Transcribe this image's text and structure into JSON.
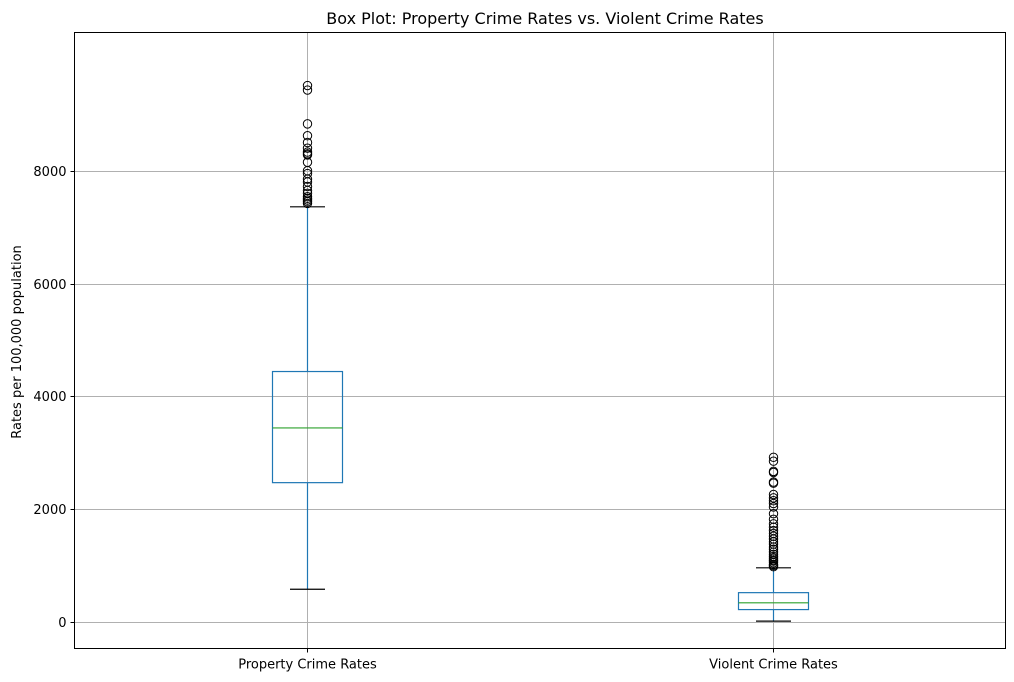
{
  "chart_data": {
    "type": "box",
    "title": "Box Plot: Property Crime Rates vs. Violent Crime Rates",
    "xlabel": "",
    "ylabel": "Rates per 100,000 population",
    "ylim": [
      -470,
      10450
    ],
    "yticks": [
      0,
      2000,
      4000,
      6000,
      8000
    ],
    "grid": true,
    "colors": {
      "box": "#1f77b4",
      "median": "#2ca02c",
      "cap": "#000000",
      "grid": "#b0b0b0"
    },
    "series": [
      {
        "name": "Property Crime Rates",
        "whisker_low": 580,
        "q1": 2470,
        "median": 3440,
        "q3": 4440,
        "whisker_high": 7360,
        "outliers": [
          7420,
          7450,
          7480,
          7510,
          7540,
          7600,
          7650,
          7720,
          7800,
          7850,
          7950,
          8000,
          8150,
          8280,
          8300,
          8330,
          8400,
          8500,
          8620,
          8830,
          9430,
          9510
        ]
      },
      {
        "name": "Violent Crime Rates",
        "whisker_low": 15,
        "q1": 220,
        "median": 340,
        "q3": 520,
        "whisker_high": 960,
        "outliers": [
          980,
          1000,
          1020,
          1050,
          1080,
          1100,
          1130,
          1160,
          1200,
          1240,
          1290,
          1330,
          1380,
          1420,
          1470,
          1520,
          1570,
          1620,
          1680,
          1740,
          1820,
          1920,
          2040,
          2100,
          2150,
          2200,
          2260,
          2460,
          2480,
          2650,
          2670,
          2850,
          2920
        ]
      }
    ]
  }
}
